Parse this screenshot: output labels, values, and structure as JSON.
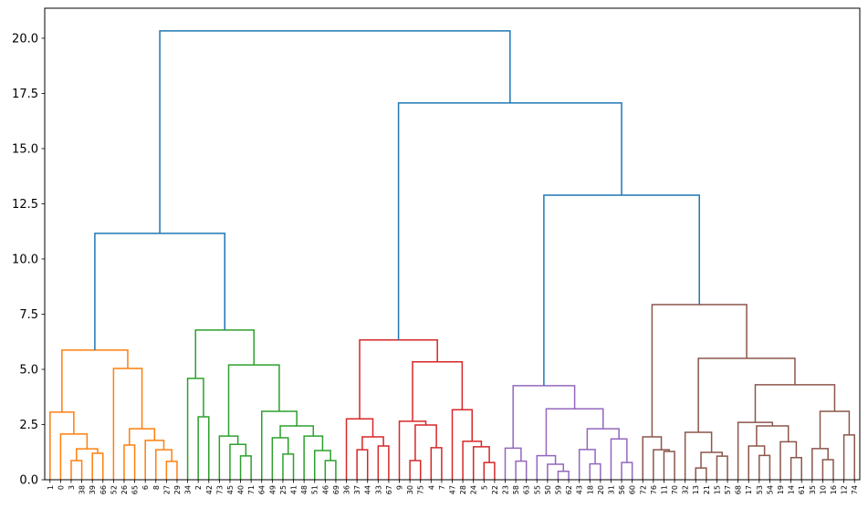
{
  "chart_data": {
    "type": "dendrogram",
    "title": "",
    "xlabel": "",
    "ylabel": "",
    "ylim": [
      0,
      21.36
    ],
    "ytick_labels": [
      "0.0",
      "2.5",
      "5.0",
      "7.5",
      "10.0",
      "12.5",
      "15.0",
      "17.5",
      "20.0"
    ],
    "colors": {
      "above_threshold": "#1f77b4",
      "c1": "#ff7f0e",
      "c2": "#2ca02c",
      "c3": "#d62728",
      "c4": "#9467bd",
      "c5": "#8c564b"
    },
    "tree": {
      "h": 20.33,
      "color": "#1f77b4",
      "children": [
        {
          "h": 11.16,
          "children": [
            {
              "h": 5.87,
              "color": "#ff7f0e",
              "children": [
                {
                  "h": 3.06,
                  "children": [
                    "1",
                    {
                      "h": 2.07,
                      "children": [
                        "0",
                        {
                          "h": 1.4,
                          "children": [
                            {
                              "h": 0.87,
                              "children": [
                                "3",
                                "38"
                              ]
                            },
                            {
                              "h": 1.2,
                              "children": [
                                "39",
                                "66"
                              ]
                            }
                          ]
                        }
                      ]
                    }
                  ]
                },
                {
                  "h": 5.04,
                  "children": [
                    "52",
                    {
                      "h": 2.31,
                      "children": [
                        {
                          "h": 1.57,
                          "children": [
                            "26",
                            "65"
                          ]
                        },
                        {
                          "h": 1.78,
                          "children": [
                            "6",
                            {
                              "h": 1.36,
                              "children": [
                                "8",
                                {
                                  "h": 0.83,
                                  "children": [
                                    "27",
                                    "29"
                                  ]
                                }
                              ]
                            }
                          ]
                        }
                      ]
                    }
                  ]
                }
              ]
            },
            {
              "h": 6.78,
              "color": "#2ca02c",
              "children": [
                {
                  "h": 4.59,
                  "children": [
                    "34",
                    {
                      "h": 2.85,
                      "children": [
                        "2",
                        "42"
                      ]
                    }
                  ]
                },
                {
                  "h": 5.2,
                  "children": [
                    {
                      "h": 1.98,
                      "children": [
                        "73",
                        {
                          "h": 1.6,
                          "children": [
                            "45",
                            {
                              "h": 1.08,
                              "children": [
                                "40",
                                "71"
                              ]
                            }
                          ]
                        }
                      ]
                    },
                    {
                      "h": 3.1,
                      "children": [
                        "64",
                        {
                          "h": 2.44,
                          "children": [
                            {
                              "h": 1.9,
                              "children": [
                                "49",
                                {
                                  "h": 1.16,
                                  "children": [
                                    "25",
                                    "41"
                                  ]
                                }
                              ]
                            },
                            {
                              "h": 1.98,
                              "children": [
                                "48",
                                {
                                  "h": 1.32,
                                  "children": [
                                    "51",
                                    {
                                      "h": 0.87,
                                      "children": [
                                        "46",
                                        "69"
                                      ]
                                    }
                                  ]
                                }
                              ]
                            }
                          ]
                        }
                      ]
                    }
                  ]
                }
              ]
            }
          ]
        },
        {
          "h": 17.07,
          "children": [
            {
              "h": 6.33,
              "color": "#d62728",
              "children": [
                {
                  "h": 2.76,
                  "children": [
                    "36",
                    {
                      "h": 1.94,
                      "children": [
                        {
                          "h": 1.36,
                          "children": [
                            "37",
                            "44"
                          ]
                        },
                        {
                          "h": 1.53,
                          "children": [
                            "33",
                            "67"
                          ]
                        }
                      ]
                    }
                  ]
                },
                {
                  "h": 5.34,
                  "children": [
                    {
                      "h": 2.65,
                      "children": [
                        "9",
                        {
                          "h": 2.48,
                          "children": [
                            {
                              "h": 0.87,
                              "children": [
                                "30",
                                "75"
                              ]
                            },
                            {
                              "h": 1.45,
                              "children": [
                                "4",
                                "7"
                              ]
                            }
                          ]
                        }
                      ]
                    },
                    {
                      "h": 3.17,
                      "children": [
                        "47",
                        {
                          "h": 1.74,
                          "children": [
                            "28",
                            {
                              "h": 1.49,
                              "children": [
                                "24",
                                {
                                  "h": 0.78,
                                  "children": [
                                    "5",
                                    "22"
                                  ]
                                }
                              ]
                            }
                          ]
                        }
                      ]
                    }
                  ]
                }
              ]
            },
            {
              "h": 12.89,
              "children": [
                {
                  "h": 4.26,
                  "color": "#9467bd",
                  "children": [
                    {
                      "h": 1.43,
                      "children": [
                        "23",
                        {
                          "h": 0.84,
                          "children": [
                            "58",
                            "63"
                          ]
                        }
                      ]
                    },
                    {
                      "h": 3.21,
                      "children": [
                        {
                          "h": 1.09,
                          "children": [
                            "55",
                            {
                              "h": 0.7,
                              "children": [
                                "50",
                                {
                                  "h": 0.38,
                                  "children": [
                                    "59",
                                    "62"
                                  ]
                                }
                              ]
                            }
                          ]
                        },
                        {
                          "h": 2.31,
                          "children": [
                            {
                              "h": 1.37,
                              "children": [
                                "43",
                                {
                                  "h": 0.72,
                                  "children": [
                                    "18",
                                    "20"
                                  ]
                                }
                              ]
                            },
                            {
                              "h": 1.85,
                              "children": [
                                "31",
                                {
                                  "h": 0.78,
                                  "children": [
                                    "56",
                                    "60"
                                  ]
                                }
                              ]
                            }
                          ]
                        }
                      ]
                    }
                  ]
                },
                {
                  "h": 7.93,
                  "color": "#8c564b",
                  "children": [
                    {
                      "h": 1.94,
                      "children": [
                        "72",
                        {
                          "h": 1.36,
                          "children": [
                            "76",
                            {
                              "h": 1.28,
                              "children": [
                                "11",
                                "70"
                              ]
                            }
                          ]
                        }
                      ]
                    },
                    {
                      "h": 5.5,
                      "children": [
                        {
                          "h": 2.15,
                          "children": [
                            "32",
                            {
                              "h": 1.24,
                              "children": [
                                {
                                  "h": 0.53,
                                  "children": [
                                    "13",
                                    "21"
                                  ]
                                },
                                {
                                  "h": 1.07,
                                  "children": [
                                    "15",
                                    "57"
                                  ]
                                }
                              ]
                            }
                          ]
                        },
                        {
                          "h": 4.3,
                          "children": [
                            {
                              "h": 2.6,
                              "children": [
                                "68",
                                {
                                  "h": 2.44,
                                  "children": [
                                    {
                                      "h": 1.53,
                                      "children": [
                                        "17",
                                        {
                                          "h": 1.1,
                                          "children": [
                                            "53",
                                            "54"
                                          ]
                                        }
                                      ]
                                    },
                                    {
                                      "h": 1.72,
                                      "children": [
                                        "19",
                                        {
                                          "h": 1.0,
                                          "children": [
                                            "14",
                                            "61"
                                          ]
                                        }
                                      ]
                                    }
                                  ]
                                }
                              ]
                            },
                            {
                              "h": 3.1,
                              "children": [
                                {
                                  "h": 1.41,
                                  "children": [
                                    "35",
                                    {
                                      "h": 0.91,
                                      "children": [
                                        "10",
                                        "16"
                                      ]
                                    }
                                  ]
                                },
                                {
                                  "h": 2.03,
                                  "children": [
                                    "12",
                                    "74"
                                  ]
                                }
                              ]
                            }
                          ]
                        }
                      ]
                    }
                  ]
                }
              ]
            }
          ]
        }
      ]
    }
  }
}
